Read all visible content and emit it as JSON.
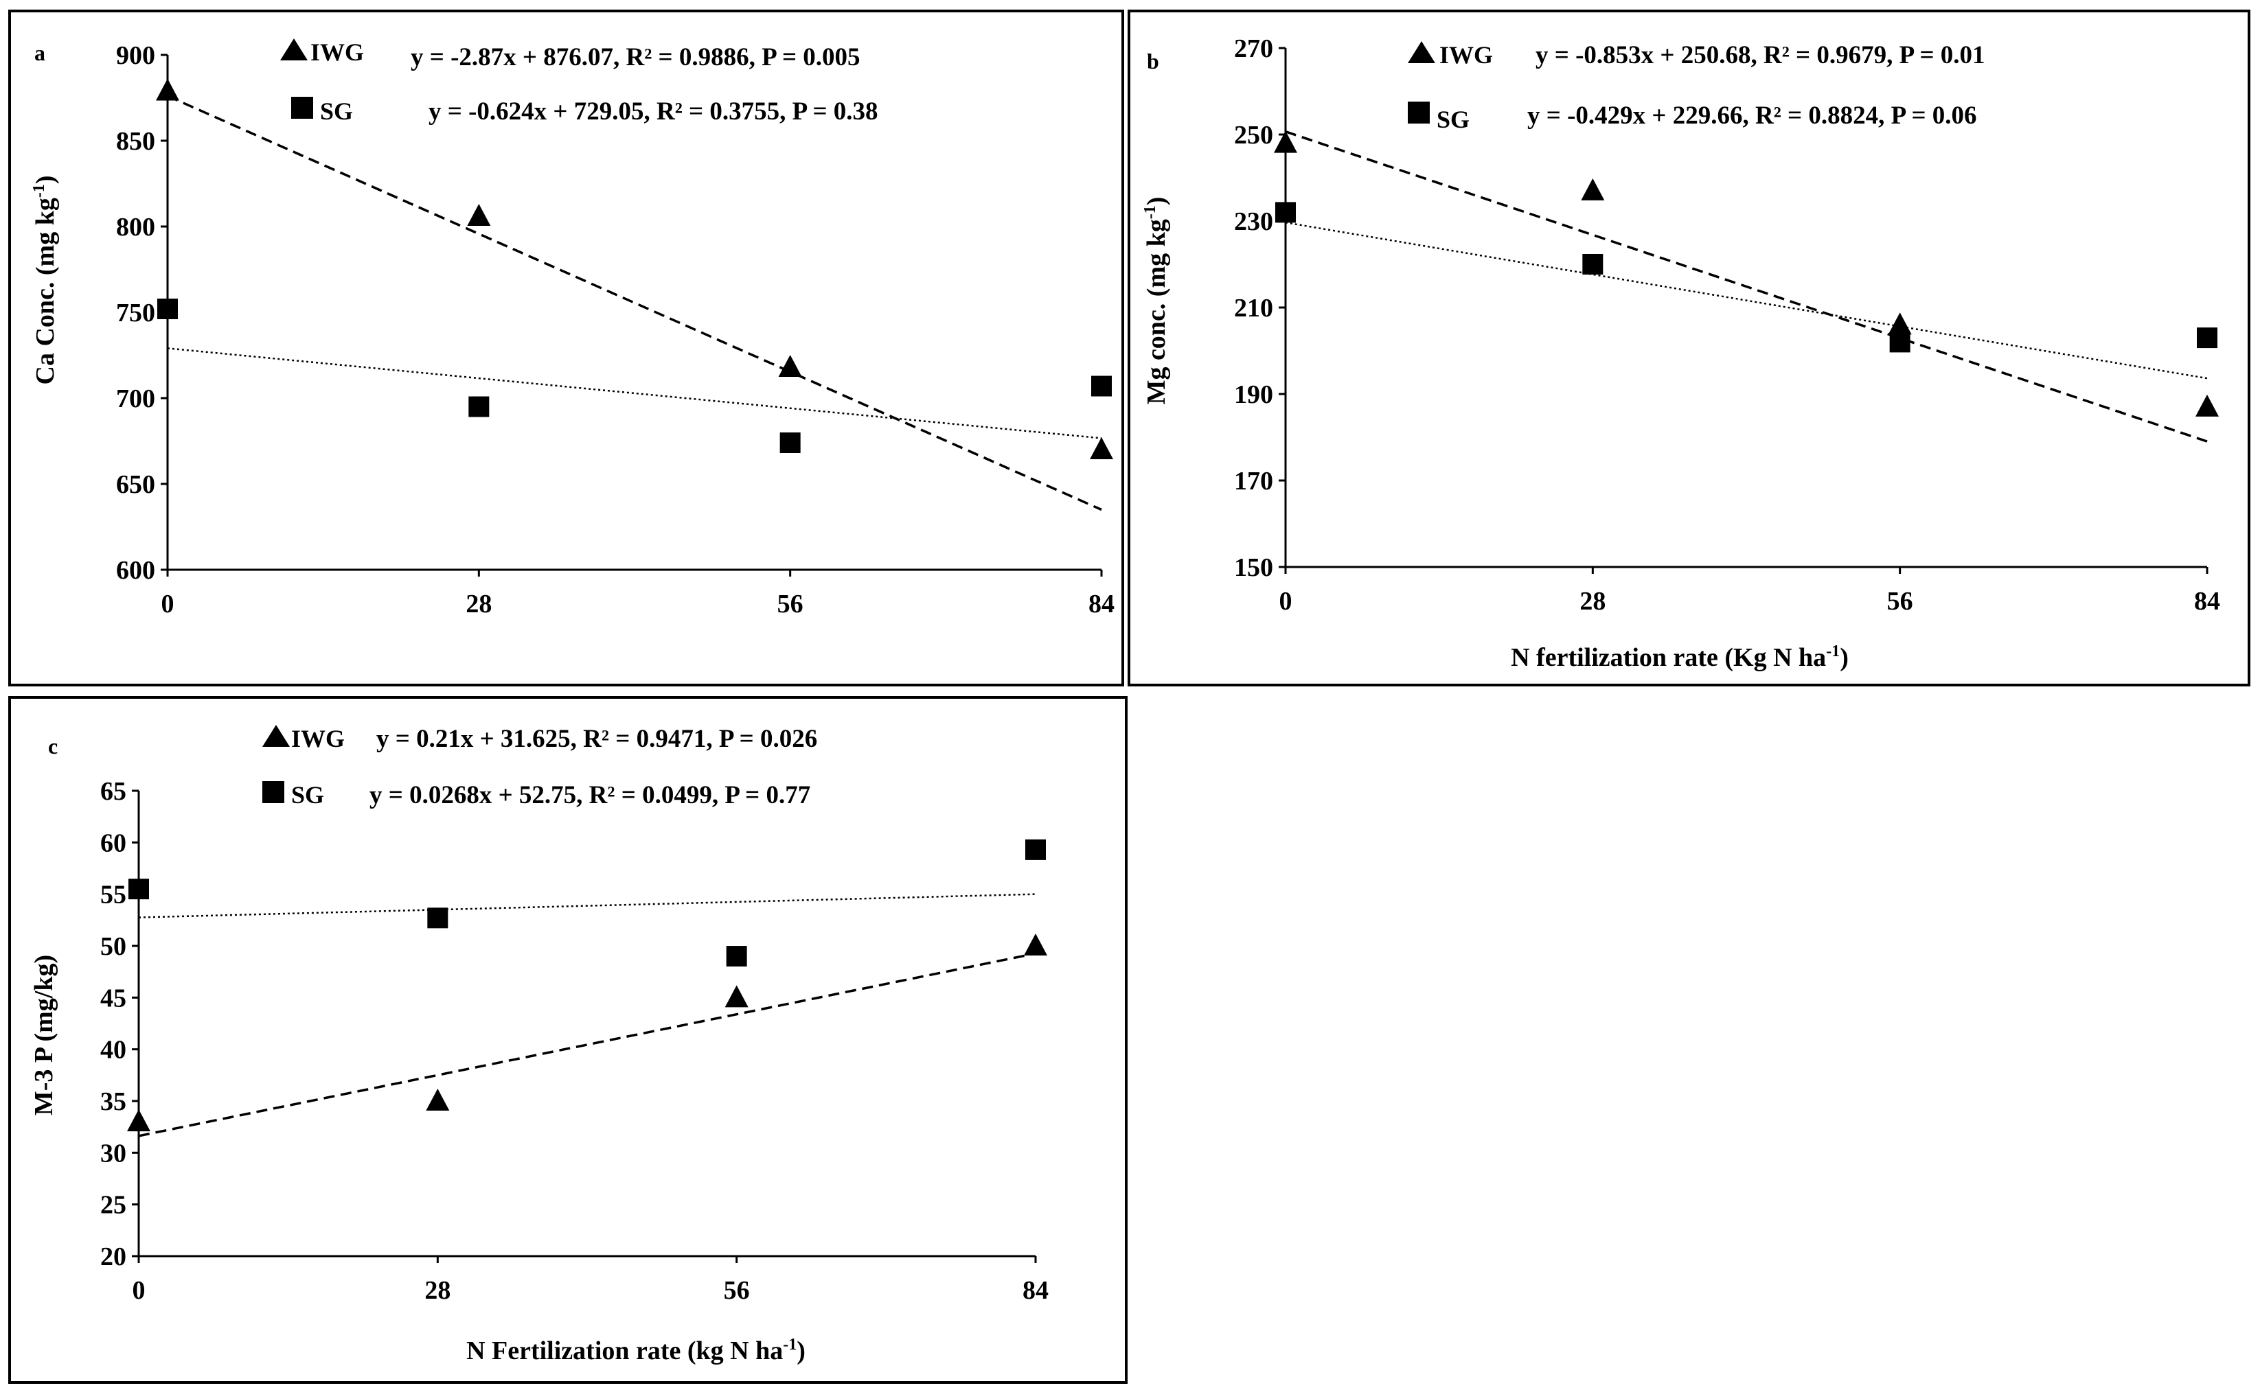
{
  "chart_data": [
    {
      "type": "scatter",
      "panel_label": "a",
      "title": "",
      "xlabel": "",
      "ylabel_main": "Ca Conc. (mg kg",
      "ylabel_sup": "-1",
      "ylabel_end": ")",
      "xlim": [
        0,
        84
      ],
      "ylim": [
        600,
        900
      ],
      "x_ticks": [
        0,
        28,
        56,
        84
      ],
      "y_ticks": [
        600,
        650,
        700,
        750,
        800,
        850,
        900
      ],
      "grid": false,
      "legend_position": "top-right",
      "series": [
        {
          "name": "IWG",
          "marker": "triangle",
          "line_style": "dashed",
          "x": [
            0,
            28,
            56,
            84
          ],
          "y": [
            879,
            806,
            718,
            670
          ],
          "equation": "y = -2.87x + 876.07, R² = 0.9886, P = 0.005",
          "slope": -2.87,
          "intercept": 876.07
        },
        {
          "name": "SG",
          "marker": "square",
          "line_style": "dotted",
          "x": [
            0,
            28,
            56,
            84
          ],
          "y": [
            752,
            695,
            674,
            707
          ],
          "equation": "y = -0.624x + 729.05, R² = 0.3755, P = 0.38",
          "slope": -0.624,
          "intercept": 729.05
        }
      ]
    },
    {
      "type": "scatter",
      "panel_label": "b",
      "title": "",
      "xlabel_main": "N fertilization rate (Kg N ha",
      "xlabel_sup": "-1",
      "xlabel_end": ")",
      "ylabel_main": "Mg conc. (mg kg",
      "ylabel_sup": "-1",
      "ylabel_end": ")",
      "xlim": [
        0,
        84
      ],
      "ylim": [
        150,
        270
      ],
      "x_ticks": [
        0,
        28,
        56,
        84
      ],
      "y_ticks": [
        150,
        170,
        190,
        210,
        230,
        250,
        270
      ],
      "grid": false,
      "legend_position": "top-right",
      "series": [
        {
          "name": "IWG",
          "marker": "triangle",
          "line_style": "dashed",
          "x": [
            0,
            28,
            56,
            84
          ],
          "y": [
            248,
            237,
            206,
            187
          ],
          "equation": "y = -0.853x + 250.68, R² = 0.9679, P = 0.01",
          "slope": -0.853,
          "intercept": 250.68
        },
        {
          "name": "SG",
          "marker": "square",
          "line_style": "dotted",
          "x": [
            0,
            28,
            56,
            84
          ],
          "y": [
            232,
            220,
            202,
            203
          ],
          "equation": "y = -0.429x + 229.66, R² = 0.8824, P = 0.06",
          "slope": -0.429,
          "intercept": 229.66
        }
      ]
    },
    {
      "type": "scatter",
      "panel_label": "c",
      "title": "",
      "xlabel_main": "N Fertilization rate (kg N ha",
      "xlabel_sup": "-1",
      "xlabel_end": ")",
      "ylabel_main": "M-3 P (mg/kg)",
      "xlim": [
        0,
        84
      ],
      "ylim": [
        20,
        65
      ],
      "x_ticks": [
        0,
        28,
        56,
        84
      ],
      "y_ticks": [
        20,
        25,
        30,
        35,
        40,
        45,
        50,
        55,
        60,
        65
      ],
      "grid": false,
      "legend_position": "top-center",
      "series": [
        {
          "name": "IWG",
          "marker": "triangle",
          "line_style": "dashed",
          "x": [
            0,
            28,
            56,
            84
          ],
          "y": [
            33,
            35,
            45,
            50
          ],
          "equation": "y = 0.21x + 31.625, R² = 0.9471, P = 0.026",
          "slope": 0.21,
          "intercept": 31.625
        },
        {
          "name": "SG",
          "marker": "square",
          "line_style": "dotted",
          "x": [
            0,
            28,
            56,
            84
          ],
          "y": [
            55.5,
            52.7,
            49,
            59.3
          ],
          "equation": "y = 0.0268x + 52.75, R² = 0.0499, P = 0.77",
          "slope": 0.0268,
          "intercept": 52.75
        }
      ]
    }
  ]
}
